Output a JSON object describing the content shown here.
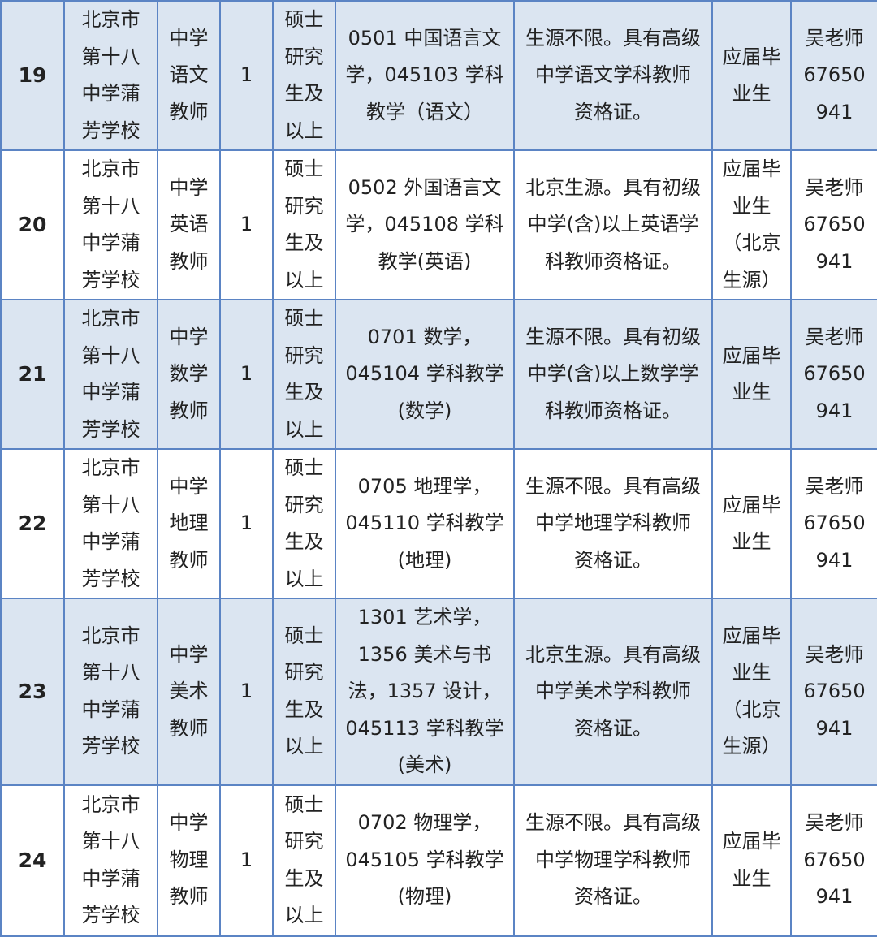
{
  "rows": [
    {
      "no": "19",
      "school": "北京市\n第十八\n中学蒲\n芳学校",
      "position": "中学\n语文\n教师",
      "count": "1",
      "degree": "硕士\n研究\n生及\n以上",
      "major": "0501 中国语言文\n学，045103 学科\n教学（语文）",
      "requirement": "生源不限。具有高级\n中学语文学科教师\n资格证。",
      "graduate": "应届毕\n业生",
      "contact": "吴老师\n67650\n941"
    },
    {
      "no": "20",
      "school": "北京市\n第十八\n中学蒲\n芳学校",
      "position": "中学\n英语\n教师",
      "count": "1",
      "degree": "硕士\n研究\n生及\n以上",
      "major": "0502 外国语言文\n学，045108 学科\n教学(英语)",
      "requirement": "北京生源。具有初级\n中学(含)以上英语学\n科教师资格证。",
      "graduate": "应届毕\n业生\n（北京\n生源）",
      "contact": "吴老师\n67650\n941"
    },
    {
      "no": "21",
      "school": "北京市\n第十八\n中学蒲\n芳学校",
      "position": "中学\n数学\n教师",
      "count": "1",
      "degree": "硕士\n研究\n生及\n以上",
      "major": "0701 数学，\n045104 学科教学\n(数学)",
      "requirement": "生源不限。具有初级\n中学(含)以上数学学\n科教师资格证。",
      "graduate": "应届毕\n业生",
      "contact": "吴老师\n67650\n941"
    },
    {
      "no": "22",
      "school": "北京市\n第十八\n中学蒲\n芳学校",
      "position": "中学\n地理\n教师",
      "count": "1",
      "degree": "硕士\n研究\n生及\n以上",
      "major": "0705 地理学，\n045110 学科教学\n(地理)",
      "requirement": "生源不限。具有高级\n中学地理学科教师\n资格证。",
      "graduate": "应届毕\n业生",
      "contact": "吴老师\n67650\n941"
    },
    {
      "no": "23",
      "school": "北京市\n第十八\n中学蒲\n芳学校",
      "position": "中学\n美术\n教师",
      "count": "1",
      "degree": "硕士\n研究\n生及\n以上",
      "major": "1301 艺术学，\n1356 美术与书\n法，1357 设计，\n045113 学科教学\n(美术)",
      "requirement": "北京生源。具有高级\n中学美术学科教师\n资格证。",
      "graduate": "应届毕\n业生\n（北京\n生源）",
      "contact": "吴老师\n67650\n941"
    },
    {
      "no": "24",
      "school": "北京市\n第十八\n中学蒲\n芳学校",
      "position": "中学\n物理\n教师",
      "count": "1",
      "degree": "硕士\n研究\n生及\n以上",
      "major": "0702 物理学，\n045105 学科教学\n(物理)",
      "requirement": "生源不限。具有高级\n中学物理学科教师\n资格证。",
      "graduate": "应届毕\n业生",
      "contact": "吴老师\n67650\n941"
    }
  ]
}
